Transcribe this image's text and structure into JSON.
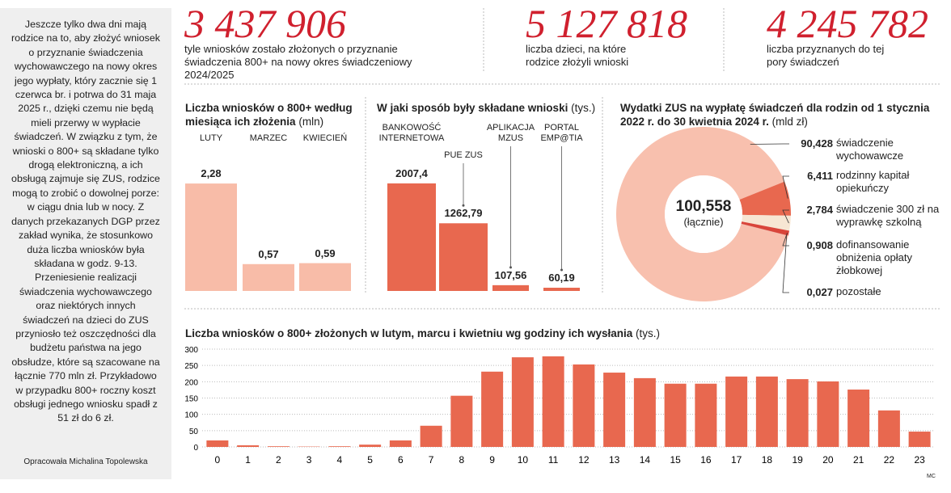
{
  "sidebar": {
    "text": "Jeszcze tylko dwa dni mają rodzice na to, aby złożyć wniosek o przyznanie świadczenia wychowawczego na nowy okres jego wypłaty, który zacznie się 1 czerwca br. i potrwa do 31 maja 2025 r., dzięki czemu nie będą mieli przerwy w wypłacie świadczeń. W związku z tym, że wnioski o 800+ są składane tylko drogą elektroniczną, a ich obsługą zajmuje się ZUS, rodzice mogą to zrobić o dowolnej porze: w ciągu dnia lub w nocy. Z danych przekazanych DGP przez zakład wynika, że stosunkowo duża liczba wniosków była składana w godz. 9-13. Przeniesienie realizacji świadczenia wychowawczego oraz niektórych innych świadczeń na dzieci do ZUS przyniosło też oszczędności dla budżetu państwa na jego obsłudze, które są szacowane na łącznie 770 mln zł. Przykładowo w przypadku 800+ roczny koszt obsługi jednego wniosku spadł z 51 zł do 6 zł.",
    "credit": "Opracowała Michalina Topolewska"
  },
  "stats": [
    {
      "value": "3 437 906",
      "label": "tyle wniosków zostało złożonych o przyznanie świadczenia 800+ na nowy okres świadczeniowy 2024/2025"
    },
    {
      "value": "5 127 818",
      "label": "liczba dzieci, na które rodzice złożyli wnioski"
    },
    {
      "value": "4 245 782",
      "label": "liczba przyznanych do tej pory świadczeń"
    }
  ],
  "footer": "MC",
  "chart_data": [
    {
      "type": "bar",
      "title": "Liczba wniosków o 800+ według miesiąca ich złożenia",
      "unit": "(mln)",
      "categories": [
        "LUTY",
        "MARZEC",
        "KWIECIEŃ"
      ],
      "values": [
        2.28,
        0.57,
        0.59
      ],
      "value_labels": [
        "2,28",
        "0,57",
        "0,59"
      ],
      "color": "#f8bca8"
    },
    {
      "type": "bar",
      "title": "W jaki sposób były składane wnioski",
      "unit": "(tys.)",
      "categories": [
        "BANKOWOŚĆ INTERNETOWA",
        "PUE ZUS",
        "APLIKACJA MZUS",
        "PORTAL EMP@TIA"
      ],
      "values": [
        2007.4,
        1262.79,
        107.56,
        60.19
      ],
      "value_labels": [
        "2007,4",
        "1262,79",
        "107,56",
        "60,19"
      ],
      "color": "#e8684f"
    },
    {
      "type": "donut",
      "title": "Wydatki ZUS na wypłatę świadczeń dla rodzin od 1 stycznia 2022 r. do 30 kwietnia 2024 r.",
      "unit": "(mld zł)",
      "total": 100.558,
      "total_label": "100,558",
      "total_caption": "(łącznie)",
      "categories": [
        "świadczenie wychowawcze",
        "rodzinny kapitał opiekuńczy",
        "świadczenie 300 zł na wyprawkę szkolną",
        "dofinansowanie obniżenia opłaty żłobkowej",
        "pozostałe"
      ],
      "values": [
        90.428,
        6.411,
        2.784,
        0.908,
        0.027
      ],
      "value_labels": [
        "90,428",
        "6,411",
        "2,784",
        "0,908",
        "0,027"
      ],
      "colors": [
        "#f8c0ae",
        "#e8684f",
        "#f7e6d3",
        "#d9453a",
        "#b8302a"
      ]
    },
    {
      "type": "bar",
      "title": "Liczba wniosków o 800+ złożonych w lutym, marcu i kwietniu wg godziny ich wysłania",
      "unit": "(tys.)",
      "categories": [
        0,
        1,
        2,
        3,
        4,
        5,
        6,
        7,
        8,
        9,
        10,
        11,
        12,
        13,
        14,
        15,
        16,
        17,
        18,
        19,
        20,
        21,
        22,
        23
      ],
      "values": [
        20,
        5,
        2,
        1,
        2,
        7,
        20,
        65,
        157,
        231,
        275,
        278,
        253,
        228,
        211,
        194,
        194,
        216,
        216,
        208,
        201,
        176,
        112,
        47
      ],
      "color": "#e8684f",
      "ylim": [
        0,
        300
      ],
      "yticks": [
        0,
        50,
        100,
        150,
        200,
        250,
        300
      ],
      "grid": true
    }
  ]
}
